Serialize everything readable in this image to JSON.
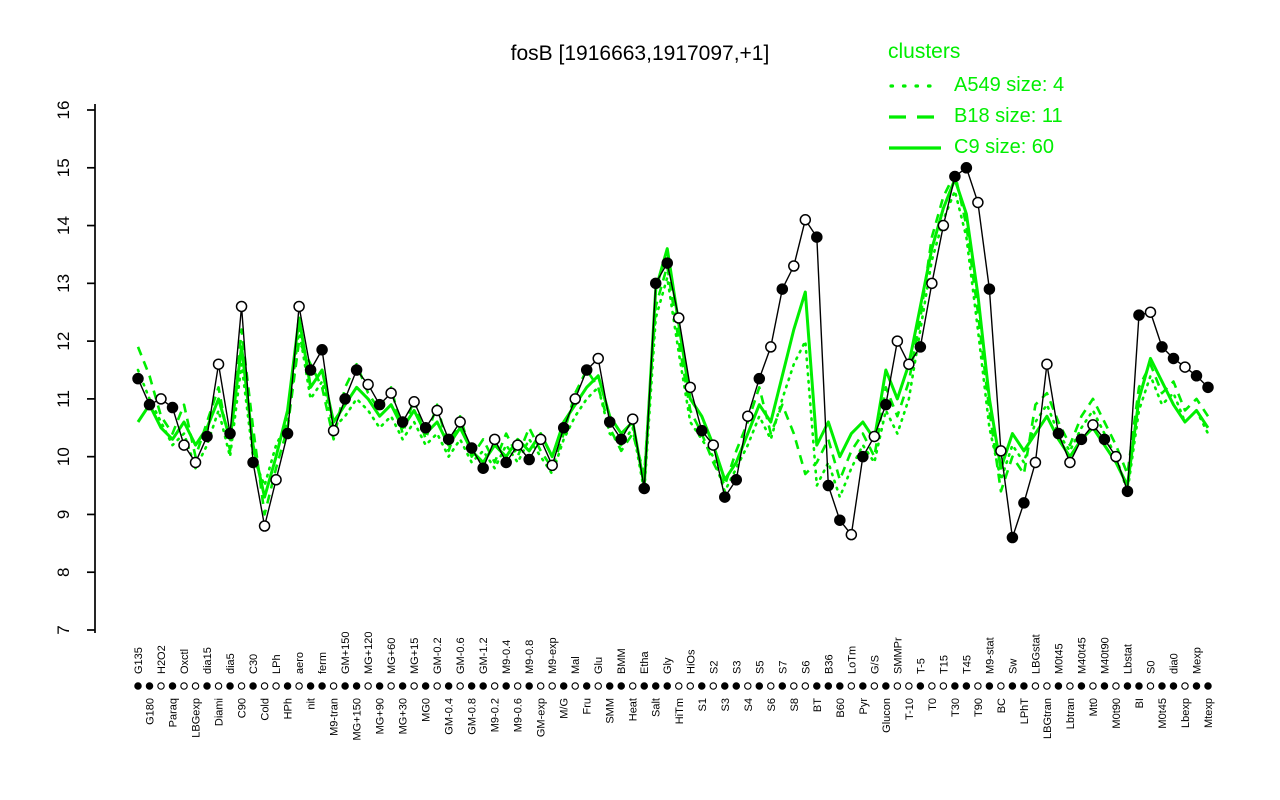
{
  "title": "fosB [1916663,1917097,+1]",
  "legend": {
    "title": "clusters",
    "color": "#00EE00",
    "entries": [
      {
        "label": "A549 size: 4",
        "style": "dotted"
      },
      {
        "label": "B18 size: 11",
        "style": "dashed"
      },
      {
        "label": "C9 size: 60",
        "style": "solid"
      }
    ]
  },
  "chart_data": {
    "type": "line",
    "title": "fosB [1916663,1917097,+1]",
    "xlabel": "",
    "ylabel": "",
    "ylim": [
      7,
      16
    ],
    "yticks": [
      7,
      8,
      9,
      10,
      11,
      12,
      13,
      14,
      15,
      16
    ],
    "grid": false,
    "legend_position": "top-right",
    "x_labels": [
      "G135",
      "G180",
      "H2O2",
      "Paraq",
      "Oxctl",
      "LBGexp",
      "dia15",
      "Diami",
      "dia5",
      "C90",
      "C30",
      "Cold",
      "LPh",
      "HPh",
      "aero",
      "nit",
      "ferm",
      "M9-tran",
      "GM+150",
      "MG+150",
      "MG+120",
      "MG+90",
      "MG+60",
      "MG+30",
      "MG+15",
      "MG0",
      "GM-0.2",
      "GM-0.4",
      "GM-0.6",
      "GM-0.8",
      "GM-1.2",
      "M9-0.2",
      "M9-0.4",
      "M9-0.6",
      "M9-0.8",
      "GM-exp",
      "M9-exp",
      "M/G",
      "Mal",
      "Fru",
      "Glu",
      "SMM",
      "BMM",
      "Heat",
      "Etha",
      "Salt",
      "Gly",
      "HiTm",
      "HiOs",
      "S1",
      "S2",
      "S3",
      "S3",
      "S4",
      "S5",
      "S6",
      "S7",
      "S8",
      "S6",
      "BT",
      "B36",
      "B60",
      "LoTm",
      "Pyr",
      "G/S",
      "Glucon",
      "SMMPr",
      "T-10",
      "T-5",
      "T0",
      "T15",
      "T30",
      "T45",
      "T90",
      "M9-stat",
      "BC",
      "Sw",
      "LPhT",
      "LBGstat",
      "LBGtran",
      "M0t45",
      "Lbtran",
      "M40t45",
      "Mt0",
      "M40t90",
      "M0t90",
      "Lbstat",
      "BI",
      "S0",
      "M0t45",
      "dia0",
      "Lbexp",
      "Mexp",
      "Mtexp"
    ],
    "marker_fill": [
      1,
      1,
      0,
      1,
      0,
      0,
      1,
      0,
      1,
      0,
      1,
      0,
      0,
      1,
      0,
      1,
      1,
      0,
      1,
      1,
      0,
      1,
      0,
      1,
      0,
      1,
      0,
      1,
      0,
      1,
      1,
      0,
      1,
      0,
      1,
      0,
      0,
      1,
      0,
      1,
      0,
      1,
      1,
      0,
      1,
      1,
      1,
      0,
      0,
      1,
      0,
      1,
      1,
      0,
      1,
      0,
      1,
      0,
      0,
      1,
      1,
      1,
      0,
      1,
      0,
      1,
      0,
      0,
      1,
      0,
      0,
      1,
      1,
      0,
      1,
      0,
      1,
      1,
      0,
      0,
      1,
      0,
      1,
      0,
      1,
      0,
      1,
      1,
      0,
      1,
      1,
      0,
      1,
      1
    ],
    "series": [
      {
        "name": "fosB",
        "role": "gene",
        "color": "#000000",
        "style": "solid",
        "markers": true,
        "values": [
          11.35,
          10.9,
          11.0,
          10.85,
          10.2,
          9.9,
          10.35,
          11.6,
          10.4,
          12.6,
          9.9,
          8.8,
          9.6,
          10.4,
          12.6,
          11.5,
          11.85,
          10.45,
          11.0,
          11.5,
          11.25,
          10.9,
          11.1,
          10.6,
          10.95,
          10.5,
          10.8,
          10.3,
          10.6,
          10.15,
          9.8,
          10.3,
          9.9,
          10.2,
          9.95,
          10.3,
          9.85,
          10.5,
          11.0,
          11.5,
          11.7,
          10.6,
          10.3,
          10.65,
          9.45,
          13.0,
          13.35,
          12.4,
          11.2,
          10.45,
          10.2,
          9.3,
          9.6,
          10.7,
          11.35,
          11.9,
          12.9,
          13.3,
          14.1,
          13.8,
          9.5,
          8.9,
          8.65,
          10.0,
          10.35,
          10.9,
          12.0,
          11.6,
          11.9,
          13.0,
          14.0,
          14.85,
          15.0,
          14.4,
          12.9,
          10.1,
          8.6,
          9.2,
          9.9,
          11.6,
          10.4,
          9.9,
          10.3,
          10.55,
          10.3,
          10.0,
          9.4,
          12.45,
          12.5,
          11.9,
          11.7,
          11.55,
          11.4,
          11.2
        ]
      },
      {
        "name": "A549",
        "role": "cluster",
        "color": "#00EE00",
        "style": "dotted",
        "markers": false,
        "values": [
          11.5,
          11.0,
          10.6,
          10.2,
          10.4,
          9.8,
          10.2,
          10.8,
          10.0,
          11.6,
          10.0,
          9.5,
          10.2,
          10.6,
          12.2,
          11.0,
          11.3,
          10.5,
          10.7,
          11.0,
          10.8,
          10.5,
          10.7,
          10.3,
          10.6,
          10.2,
          10.4,
          10.0,
          10.3,
          9.9,
          10.1,
          9.8,
          10.2,
          9.9,
          10.3,
          10.0,
          9.7,
          10.3,
          10.7,
          11.0,
          11.2,
          10.4,
          10.2,
          10.5,
          9.4,
          12.4,
          13.1,
          11.8,
          10.6,
          10.3,
          10.0,
          9.4,
          9.8,
          10.2,
          10.7,
          10.3,
          11.0,
          11.6,
          12.0,
          9.5,
          9.9,
          9.3,
          9.8,
          10.2,
          9.9,
          10.8,
          10.4,
          11.0,
          12.2,
          13.4,
          14.1,
          14.6,
          13.8,
          12.2,
          10.5,
          9.6,
          10.2,
          9.9,
          10.6,
          10.9,
          10.4,
          10.1,
          10.5,
          10.8,
          10.4,
          10.0,
          9.4,
          10.8,
          11.4,
          10.9,
          11.1,
          10.6,
          10.8,
          10.4
        ]
      },
      {
        "name": "B18",
        "role": "cluster",
        "color": "#00EE00",
        "style": "dashed",
        "markers": false,
        "values": [
          11.9,
          11.4,
          10.7,
          10.4,
          10.9,
          10.0,
          10.6,
          11.2,
          10.1,
          12.2,
          10.5,
          9.0,
          9.8,
          10.5,
          12.0,
          11.6,
          11.2,
          10.3,
          11.2,
          11.6,
          11.1,
          10.8,
          11.2,
          10.4,
          11.0,
          10.3,
          10.9,
          10.1,
          10.7,
          10.0,
          10.3,
          9.9,
          10.4,
          10.0,
          10.5,
          10.1,
          9.8,
          10.4,
          11.1,
          11.5,
          11.2,
          10.5,
          10.1,
          10.4,
          9.7,
          12.6,
          13.3,
          12.0,
          10.8,
          10.4,
          9.9,
          9.5,
          10.1,
          10.6,
          11.2,
          10.4,
          10.9,
          10.4,
          9.7,
          9.9,
          10.3,
          9.6,
          10.1,
          10.4,
          10.0,
          11.2,
          10.7,
          11.3,
          12.4,
          13.8,
          14.5,
          14.9,
          14.0,
          12.5,
          10.8,
          9.4,
          10.0,
          9.7,
          10.9,
          11.1,
          10.6,
          10.2,
          10.7,
          11.0,
          10.6,
          10.2,
          9.7,
          11.2,
          11.6,
          11.1,
          11.3,
          10.8,
          11.0,
          10.7
        ]
      },
      {
        "name": "C9",
        "role": "cluster",
        "color": "#00EE00",
        "style": "solid",
        "markers": false,
        "values": [
          10.6,
          10.9,
          10.5,
          10.3,
          10.6,
          10.2,
          10.5,
          11.0,
          10.3,
          11.9,
          10.2,
          9.3,
          10.0,
          10.8,
          12.4,
          11.2,
          11.5,
          10.6,
          10.9,
          11.2,
          11.0,
          10.7,
          10.9,
          10.5,
          10.8,
          10.4,
          10.6,
          10.2,
          10.5,
          10.1,
          9.9,
          10.2,
          10.0,
          10.3,
          10.1,
          10.4,
          10.0,
          10.6,
          10.9,
          11.2,
          11.4,
          10.7,
          10.4,
          10.6,
          9.5,
          12.9,
          13.6,
          12.3,
          11.0,
          10.7,
          10.2,
          9.6,
          9.9,
          10.4,
          10.9,
          10.6,
          11.4,
          12.2,
          12.85,
          10.2,
          10.6,
          10.0,
          10.4,
          10.6,
          10.3,
          11.5,
          11.0,
          11.6,
          12.6,
          13.6,
          14.3,
          14.8,
          14.2,
          12.8,
          11.0,
          9.8,
          10.4,
          10.1,
          10.4,
          10.7,
          10.3,
          10.0,
          10.3,
          10.5,
          10.2,
          9.9,
          9.5,
          11.0,
          11.7,
          11.3,
          10.9,
          10.6,
          10.8,
          10.5
        ]
      }
    ]
  }
}
